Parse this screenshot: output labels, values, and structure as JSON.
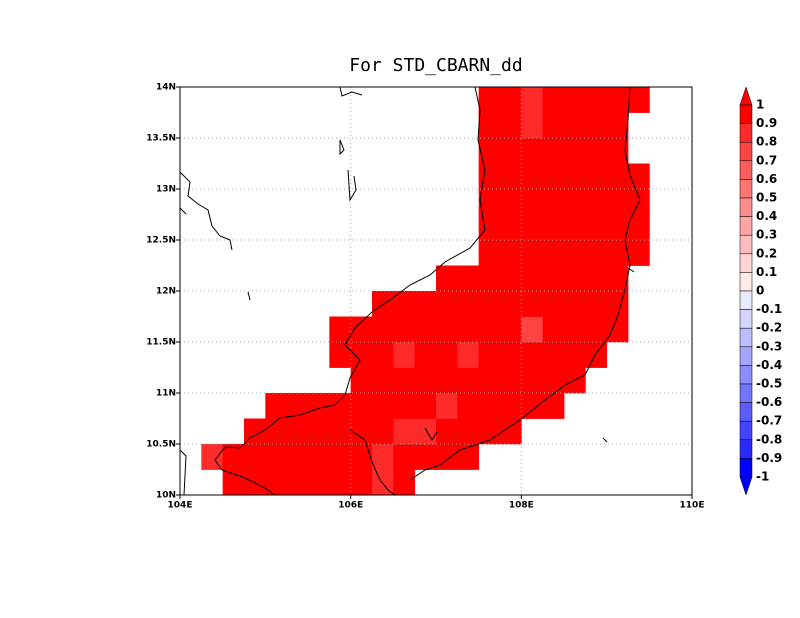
{
  "chart_data": {
    "type": "heatmap",
    "title": "For STD_CBARN_dd",
    "xlim": [
      104,
      110
    ],
    "ylim": [
      10,
      14
    ],
    "xticks": [
      {
        "value": 104,
        "label": "104E"
      },
      {
        "value": 106,
        "label": "106E"
      },
      {
        "value": 108,
        "label": "108E"
      },
      {
        "value": 110,
        "label": "110E"
      }
    ],
    "yticks": [
      {
        "value": 10,
        "label": "10N"
      },
      {
        "value": 10.5,
        "label": "10.5N"
      },
      {
        "value": 11,
        "label": "11N"
      },
      {
        "value": 11.5,
        "label": "11.5N"
      },
      {
        "value": 12,
        "label": "12N"
      },
      {
        "value": 12.5,
        "label": "12.5N"
      },
      {
        "value": 13,
        "label": "13N"
      },
      {
        "value": 13.5,
        "label": "13.5N"
      },
      {
        "value": 14,
        "label": "14N"
      }
    ],
    "grid": true,
    "cell": 0.25,
    "rows": [
      {
        "lat": 10.0,
        "lon0": 104.5,
        "values": [
          0.95,
          0.95,
          0.95,
          0.95,
          0.9,
          0.95,
          0.95,
          0.85,
          0.95
        ]
      },
      {
        "lat": 10.25,
        "lon0": 104.25,
        "values": [
          0.85,
          0.95,
          0.95,
          0.95,
          0.95,
          0.95,
          0.95,
          0.95,
          0.85,
          0.95,
          0.95,
          0.95,
          0.95
        ]
      },
      {
        "lat": 10.5,
        "lon0": 104.75,
        "values": [
          0.95,
          0.95,
          0.95,
          0.95,
          0.95,
          0.95,
          0.9,
          0.85,
          0.85,
          0.95,
          0.95,
          0.95,
          0.95
        ]
      },
      {
        "lat": 10.75,
        "lon0": 105.0,
        "values": [
          0.95,
          0.9,
          0.9,
          0.95,
          0.95,
          0.95,
          0.9,
          0.9,
          0.85,
          0.95,
          0.95,
          0.95,
          0.95,
          0.95
        ]
      },
      {
        "lat": 11.0,
        "lon0": 106.0,
        "values": [
          0.95,
          0.95,
          0.95,
          0.95,
          0.9,
          0.95,
          0.9,
          0.95,
          0.95,
          0.95,
          0.95
        ]
      },
      {
        "lat": 11.25,
        "lon0": 105.75,
        "values": [
          0.95,
          0.95,
          0.95,
          0.85,
          0.95,
          0.95,
          0.85,
          0.95,
          0.95,
          0.95,
          0.95,
          0.95,
          0.95
        ]
      },
      {
        "lat": 11.5,
        "lon0": 105.75,
        "values": [
          0.95,
          0.95,
          0.95,
          0.95,
          0.95,
          0.95,
          0.95,
          0.95,
          0.95,
          0.75,
          0.95,
          0.95,
          0.95,
          0.95
        ]
      },
      {
        "lat": 11.75,
        "lon0": 106.25,
        "values": [
          0.95,
          0.95,
          0.95,
          0.95,
          0.95,
          0.95,
          0.9,
          0.95,
          0.95,
          0.95,
          0.95,
          0.95
        ]
      },
      {
        "lat": 12.0,
        "lon0": 107.0,
        "values": [
          0.95,
          0.95,
          0.95,
          0.9,
          0.95,
          0.95,
          0.95,
          0.95,
          0.95
        ]
      },
      {
        "lat": 12.25,
        "lon0": 107.5,
        "values": [
          0.95,
          0.95,
          0.95,
          0.95,
          0.95,
          0.95,
          0.95,
          0.95
        ]
      },
      {
        "lat": 12.5,
        "lon0": 107.5,
        "values": [
          0.95,
          0.95,
          0.95,
          0.95,
          0.95,
          0.95,
          0.95,
          0.95
        ]
      },
      {
        "lat": 12.75,
        "lon0": 107.5,
        "values": [
          0.95,
          0.9,
          0.95,
          0.95,
          0.95,
          0.95,
          0.95,
          0.95
        ]
      },
      {
        "lat": 13.0,
        "lon0": 107.5,
        "values": [
          0.95,
          0.95,
          0.95,
          0.95,
          0.95,
          0.95,
          0.9,
          0.9
        ]
      },
      {
        "lat": 13.25,
        "lon0": 107.5,
        "values": [
          0.95,
          0.95,
          0.95,
          0.95,
          0.95,
          0.95,
          0.9
        ]
      },
      {
        "lat": 13.5,
        "lon0": 107.5,
        "values": [
          0.95,
          0.9,
          0.85,
          0.95,
          0.95,
          0.9,
          0.95
        ]
      },
      {
        "lat": 13.75,
        "lon0": 107.5,
        "values": [
          0.95,
          0.9,
          0.85,
          0.95,
          0.95,
          0.95,
          0.95,
          0.95
        ]
      }
    ],
    "colorbar": {
      "levels": [
        1,
        0.9,
        0.8,
        0.7,
        0.6,
        0.5,
        0.4,
        0.3,
        0.2,
        0.1,
        0,
        -0.1,
        -0.2,
        -0.3,
        -0.4,
        -0.5,
        -0.6,
        -0.7,
        -0.8,
        -0.9,
        -1
      ],
      "colors": [
        "#ff0000",
        "#ff0000",
        "#ff2a2a",
        "#ff4444",
        "#ff5c5c",
        "#ff7474",
        "#ff8c8c",
        "#ffa4a4",
        "#ffbcbc",
        "#ffd4d4",
        "#ffeaea",
        "#eaeaff",
        "#d4d4ff",
        "#bcbcff",
        "#a4a4ff",
        "#8c8cff",
        "#7474ff",
        "#5c5cff",
        "#4444ff",
        "#2a2aff",
        "#0000ff",
        "#0000ff"
      ]
    }
  }
}
